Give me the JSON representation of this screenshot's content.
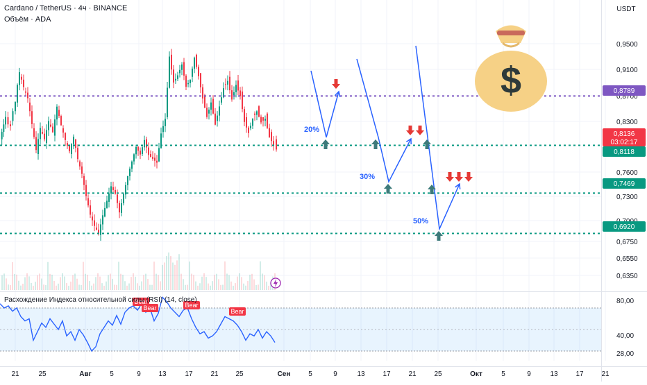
{
  "header": {
    "symbol_line": "Cardano / TetherUS · 4ч · BINANCE",
    "volume_line": "Объём · ADA",
    "currency": "USDT"
  },
  "chart_data": [
    {
      "type": "candlestick",
      "title": "Cardano / TetherUS · 4ч · BINANCE",
      "y_ticks": [
        "0,9500",
        "0,9100",
        "0,8700",
        "0,8300",
        "0,7600",
        "0,7300",
        "0,7000",
        "0,6750",
        "0,6550",
        "0,6350"
      ],
      "ylim": [
        0.625,
        0.985
      ],
      "x_ticks": [
        "21",
        "25",
        "Авг",
        "5",
        "9",
        "13",
        "17",
        "21",
        "25",
        "Сен",
        "5",
        "9",
        "13",
        "17",
        "21",
        "25",
        "Окт",
        "5",
        "9",
        "13",
        "17",
        "21"
      ],
      "price_series": {
        "points": [
          [
            0,
            0.82
          ],
          [
            8,
            0.85
          ],
          [
            15,
            0.845
          ],
          [
            22,
            0.87
          ],
          [
            28,
            0.905
          ],
          [
            34,
            0.885
          ],
          [
            40,
            0.87
          ],
          [
            46,
            0.835
          ],
          [
            52,
            0.8
          ],
          [
            58,
            0.83
          ],
          [
            64,
            0.815
          ],
          [
            70,
            0.84
          ],
          [
            76,
            0.825
          ],
          [
            82,
            0.86
          ],
          [
            88,
            0.835
          ],
          [
            94,
            0.815
          ],
          [
            100,
            0.8
          ],
          [
            106,
            0.82
          ],
          [
            112,
            0.79
          ],
          [
            118,
            0.77
          ],
          [
            124,
            0.74
          ],
          [
            130,
            0.715
          ],
          [
            136,
            0.7
          ],
          [
            142,
            0.69
          ],
          [
            148,
            0.715
          ],
          [
            154,
            0.735
          ],
          [
            160,
            0.755
          ],
          [
            166,
            0.745
          ],
          [
            172,
            0.72
          ],
          [
            178,
            0.745
          ],
          [
            184,
            0.77
          ],
          [
            190,
            0.79
          ],
          [
            196,
            0.81
          ],
          [
            202,
            0.8
          ],
          [
            208,
            0.82
          ],
          [
            214,
            0.8
          ],
          [
            220,
            0.795
          ],
          [
            226,
            0.79
          ],
          [
            232,
            0.83
          ],
          [
            238,
            0.85
          ],
          [
            244,
            0.935
          ],
          [
            250,
            0.9
          ],
          [
            256,
            0.91
          ],
          [
            262,
            0.925
          ],
          [
            268,
            0.895
          ],
          [
            274,
            0.905
          ],
          [
            280,
            0.935
          ],
          [
            286,
            0.91
          ],
          [
            292,
            0.88
          ],
          [
            298,
            0.855
          ],
          [
            304,
            0.875
          ],
          [
            310,
            0.845
          ],
          [
            316,
            0.87
          ],
          [
            322,
            0.895
          ],
          [
            328,
            0.905
          ],
          [
            334,
            0.88
          ],
          [
            340,
            0.9
          ],
          [
            346,
            0.885
          ],
          [
            352,
            0.85
          ],
          [
            358,
            0.835
          ],
          [
            364,
            0.855
          ],
          [
            370,
            0.865
          ],
          [
            376,
            0.85
          ],
          [
            382,
            0.855
          ],
          [
            388,
            0.83
          ],
          [
            394,
            0.82
          ],
          [
            398,
            0.8136
          ]
        ]
      },
      "current_price": {
        "value": "0,8136",
        "countdown": "03:02:17"
      },
      "price_labels": [
        {
          "value": "0,8789",
          "color": "#7E57C2"
        },
        {
          "value": "0,8118",
          "color": "#089981"
        },
        {
          "value": "0,7469",
          "color": "#089981"
        },
        {
          "value": "0,6920",
          "color": "#089981"
        }
      ],
      "horizontal_levels": [
        {
          "price": 0.8789,
          "color": "#7E57C2"
        },
        {
          "price": 0.8118,
          "color": "#089981"
        },
        {
          "price": 0.7469,
          "color": "#089981"
        },
        {
          "price": 0.692,
          "color": "#089981"
        }
      ],
      "scenario_labels": [
        "20%",
        "30%",
        "50%"
      ],
      "grid": true,
      "icon": "money-bag-icon"
    },
    {
      "type": "line",
      "title": "Расхождение Индекса относительной силы (RSI) (14, close)",
      "y_ticks": [
        "80,00",
        "40,00",
        "28,00"
      ],
      "ylim": [
        20,
        90
      ],
      "band": [
        30,
        70
      ],
      "divergence_labels": [
        "Bear",
        "Bear",
        "Bear",
        "Bear"
      ],
      "series": [
        {
          "color": "#2962FF",
          "values": [
            [
              0,
              74
            ],
            [
              6,
              70
            ],
            [
              12,
              72
            ],
            [
              18,
              67
            ],
            [
              24,
              70
            ],
            [
              30,
              62
            ],
            [
              36,
              58
            ],
            [
              42,
              60
            ],
            [
              48,
              40
            ],
            [
              54,
              48
            ],
            [
              60,
              56
            ],
            [
              66,
              52
            ],
            [
              72,
              60
            ],
            [
              78,
              55
            ],
            [
              84,
              50
            ],
            [
              90,
              58
            ],
            [
              96,
              44
            ],
            [
              102,
              48
            ],
            [
              108,
              40
            ],
            [
              114,
              50
            ],
            [
              120,
              45
            ],
            [
              126,
              38
            ],
            [
              132,
              30
            ],
            [
              138,
              34
            ],
            [
              144,
              46
            ],
            [
              150,
              52
            ],
            [
              156,
              58
            ],
            [
              162,
              54
            ],
            [
              168,
              63
            ],
            [
              174,
              55
            ],
            [
              180,
              66
            ],
            [
              186,
              70
            ],
            [
              192,
              72
            ],
            [
              198,
              68
            ],
            [
              204,
              74
            ],
            [
              210,
              66
            ],
            [
              216,
              70
            ],
            [
              222,
              58
            ],
            [
              228,
              65
            ],
            [
              234,
              80
            ],
            [
              240,
              76
            ],
            [
              246,
              70
            ],
            [
              252,
              66
            ],
            [
              258,
              62
            ],
            [
              264,
              68
            ],
            [
              270,
              70
            ],
            [
              276,
              60
            ],
            [
              282,
              52
            ],
            [
              288,
              46
            ],
            [
              294,
              48
            ],
            [
              300,
              42
            ],
            [
              306,
              44
            ],
            [
              312,
              48
            ],
            [
              318,
              55
            ],
            [
              324,
              62
            ],
            [
              330,
              60
            ],
            [
              336,
              58
            ],
            [
              342,
              54
            ],
            [
              348,
              48
            ],
            [
              354,
              40
            ],
            [
              360,
              46
            ],
            [
              366,
              44
            ],
            [
              372,
              50
            ],
            [
              378,
              42
            ],
            [
              384,
              48
            ],
            [
              390,
              44
            ],
            [
              396,
              38
            ]
          ]
        }
      ]
    }
  ]
}
